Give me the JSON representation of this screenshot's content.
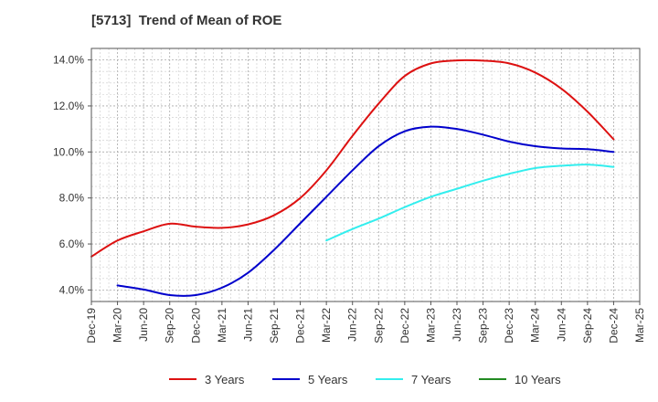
{
  "chart_data": {
    "type": "line",
    "title": "[5713]  Trend of Mean of ROE",
    "xlabel": "",
    "ylabel": "",
    "ylim": [
      3.5,
      14.5
    ],
    "yticks": [
      4.0,
      6.0,
      8.0,
      10.0,
      12.0,
      14.0
    ],
    "ytick_labels": [
      "4.0%",
      "6.0%",
      "8.0%",
      "10.0%",
      "12.0%",
      "14.0%"
    ],
    "categories": [
      "Dec-19",
      "Mar-20",
      "Jun-20",
      "Sep-20",
      "Dec-20",
      "Mar-21",
      "Jun-21",
      "Sep-21",
      "Dec-21",
      "Mar-22",
      "Jun-22",
      "Sep-22",
      "Dec-22",
      "Mar-23",
      "Jun-23",
      "Sep-23",
      "Dec-23",
      "Mar-24",
      "Jun-24",
      "Sep-24",
      "Dec-24",
      "Mar-25"
    ],
    "grid": true,
    "legend_position": "bottom",
    "series": [
      {
        "name": "3 Years",
        "color": "#dd1111",
        "values": [
          5.45,
          6.15,
          6.55,
          6.88,
          6.75,
          6.7,
          6.85,
          7.25,
          8.0,
          9.2,
          10.7,
          12.1,
          13.3,
          13.85,
          13.98,
          13.97,
          13.85,
          13.45,
          12.75,
          11.75,
          10.55,
          null
        ]
      },
      {
        "name": "5 Years",
        "color": "#0000cc",
        "values": [
          null,
          4.2,
          4.02,
          3.78,
          3.78,
          4.1,
          4.75,
          5.75,
          6.9,
          8.05,
          9.2,
          10.25,
          10.9,
          11.1,
          11.0,
          10.75,
          10.45,
          10.25,
          10.15,
          10.12,
          10.0,
          null
        ]
      },
      {
        "name": "7 Years",
        "color": "#33eeee",
        "values": [
          null,
          null,
          null,
          null,
          null,
          null,
          null,
          null,
          null,
          6.15,
          6.65,
          7.1,
          7.6,
          8.05,
          8.4,
          8.75,
          9.05,
          9.3,
          9.4,
          9.45,
          9.35,
          null
        ]
      },
      {
        "name": "10 Years",
        "color": "#228b22",
        "values": [
          null,
          null,
          null,
          null,
          null,
          null,
          null,
          null,
          null,
          null,
          null,
          null,
          null,
          null,
          null,
          null,
          null,
          null,
          null,
          null,
          null,
          null
        ]
      }
    ]
  }
}
